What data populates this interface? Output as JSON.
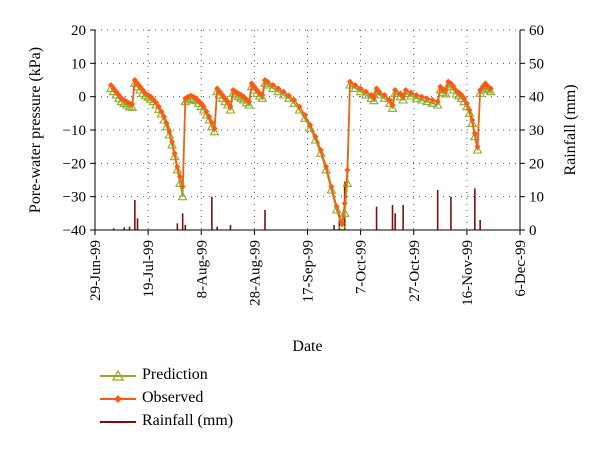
{
  "chart_data": {
    "type": "line",
    "xlabel": "Date",
    "ylabel": "Pore-water pressure (kPa)",
    "y2label": "Rainfall (mm)",
    "x_ticks": [
      "29-Jun-99",
      "19-Jul-99",
      "8-Aug-99",
      "28-Aug-99",
      "17-Sep-99",
      "7-Oct-99",
      "27-Oct-99",
      "16-Nov-99",
      "6-Dec-99"
    ],
    "xlim": [
      "1999-06-29",
      "1999-12-06"
    ],
    "ylim": [
      -40,
      20
    ],
    "y_ticks": [
      -40,
      -30,
      -20,
      -10,
      0,
      10,
      20
    ],
    "y2lim": [
      0,
      60
    ],
    "y2_ticks": [
      0,
      10,
      20,
      30,
      40,
      50,
      60
    ],
    "grid": "dotted",
    "colors": {
      "prediction": "#8faa2a",
      "observed": "#ff5a14",
      "rainfall": "#7a1010"
    },
    "series": [
      {
        "name": "Prediction",
        "axis": "left",
        "marker": "triangle",
        "points": [
          [
            "1999-07-05",
            2.5
          ],
          [
            "1999-07-06",
            1.5
          ],
          [
            "1999-07-07",
            0.5
          ],
          [
            "1999-07-08",
            -0.5
          ],
          [
            "1999-07-09",
            -1.5
          ],
          [
            "1999-07-10",
            -2
          ],
          [
            "1999-07-11",
            -2.5
          ],
          [
            "1999-07-12",
            -3
          ],
          [
            "1999-07-13",
            -3.2
          ],
          [
            "1999-07-14",
            4
          ],
          [
            "1999-07-15",
            3
          ],
          [
            "1999-07-16",
            2
          ],
          [
            "1999-07-17",
            1
          ],
          [
            "1999-07-18",
            0.3
          ],
          [
            "1999-07-19",
            -0.2
          ],
          [
            "1999-07-20",
            -0.8
          ],
          [
            "1999-07-21",
            -1.5
          ],
          [
            "1999-07-22",
            -2.5
          ],
          [
            "1999-07-23",
            -3.8
          ],
          [
            "1999-07-24",
            -5.2
          ],
          [
            "1999-07-25",
            -7
          ],
          [
            "1999-07-26",
            -9
          ],
          [
            "1999-07-27",
            -11.5
          ],
          [
            "1999-07-28",
            -14.5
          ],
          [
            "1999-07-29",
            -18
          ],
          [
            "1999-07-30",
            -22
          ],
          [
            "1999-07-31",
            -26
          ],
          [
            "1999-08-01",
            -30
          ],
          [
            "1999-08-02",
            -1.5
          ],
          [
            "1999-08-03",
            -1
          ],
          [
            "1999-08-04",
            -0.5
          ],
          [
            "1999-08-05",
            -0.8
          ],
          [
            "1999-08-06",
            -1.2
          ],
          [
            "1999-08-07",
            -2
          ],
          [
            "1999-08-08",
            -3
          ],
          [
            "1999-08-09",
            -4
          ],
          [
            "1999-08-10",
            -5.5
          ],
          [
            "1999-08-11",
            -7
          ],
          [
            "1999-08-12",
            -9
          ],
          [
            "1999-08-13",
            -10.5
          ],
          [
            "1999-08-14",
            1.5
          ],
          [
            "1999-08-15",
            0.5
          ],
          [
            "1999-08-16",
            -0.5
          ],
          [
            "1999-08-17",
            -1.5
          ],
          [
            "1999-08-18",
            -2.5
          ],
          [
            "1999-08-19",
            -4
          ],
          [
            "1999-08-20",
            1
          ],
          [
            "1999-08-21",
            0.5
          ],
          [
            "1999-08-22",
            0
          ],
          [
            "1999-08-23",
            -0.5
          ],
          [
            "1999-08-24",
            -1
          ],
          [
            "1999-08-25",
            -1.8
          ],
          [
            "1999-08-26",
            -2.5
          ],
          [
            "1999-08-27",
            3
          ],
          [
            "1999-08-28",
            2
          ],
          [
            "1999-08-29",
            1
          ],
          [
            "1999-08-30",
            0.2
          ],
          [
            "1999-08-31",
            -0.5
          ],
          [
            "1999-09-01",
            4
          ],
          [
            "1999-09-02",
            3.5
          ],
          [
            "1999-09-04",
            2.5
          ],
          [
            "1999-09-06",
            1.5
          ],
          [
            "1999-09-08",
            0.5
          ],
          [
            "1999-09-10",
            -0.5
          ],
          [
            "1999-09-12",
            -2
          ],
          [
            "1999-09-14",
            -4
          ],
          [
            "1999-09-16",
            -6.5
          ],
          [
            "1999-09-18",
            -9.5
          ],
          [
            "1999-09-20",
            -13
          ],
          [
            "1999-09-22",
            -17
          ],
          [
            "1999-09-24",
            -22
          ],
          [
            "1999-09-26",
            -28
          ],
          [
            "1999-09-28",
            -34
          ],
          [
            "1999-09-30",
            -39
          ],
          [
            "1999-10-01",
            -35
          ],
          [
            "1999-10-02",
            -26
          ],
          [
            "1999-10-03",
            3.5
          ],
          [
            "1999-10-05",
            2.5
          ],
          [
            "1999-10-07",
            1.5
          ],
          [
            "1999-10-09",
            0.5
          ],
          [
            "1999-10-11",
            -0.5
          ],
          [
            "1999-10-12",
            -1.2
          ],
          [
            "1999-10-13",
            1.5
          ],
          [
            "1999-10-14",
            0.5
          ],
          [
            "1999-10-16",
            -0.5
          ],
          [
            "1999-10-18",
            -2
          ],
          [
            "1999-10-19",
            -3.5
          ],
          [
            "1999-10-20",
            1
          ],
          [
            "1999-10-22",
            0
          ],
          [
            "1999-10-23",
            -1
          ],
          [
            "1999-10-24",
            1
          ],
          [
            "1999-10-26",
            0.2
          ],
          [
            "1999-10-28",
            -0.5
          ],
          [
            "1999-10-30",
            -1
          ],
          [
            "1999-11-01",
            -1.5
          ],
          [
            "1999-11-03",
            -2
          ],
          [
            "1999-11-05",
            -2.5
          ],
          [
            "1999-11-06",
            2
          ],
          [
            "1999-11-07",
            1.2
          ],
          [
            "1999-11-08",
            0.8
          ],
          [
            "1999-11-09",
            3.5
          ],
          [
            "1999-11-10",
            3
          ],
          [
            "1999-11-11",
            2
          ],
          [
            "1999-11-12",
            0.8
          ],
          [
            "1999-11-13",
            0.2
          ],
          [
            "1999-11-14",
            -0.5
          ],
          [
            "1999-11-15",
            -1.5
          ],
          [
            "1999-11-16",
            -3
          ],
          [
            "1999-11-17",
            -5
          ],
          [
            "1999-11-18",
            -8
          ],
          [
            "1999-11-19",
            -12
          ],
          [
            "1999-11-20",
            -16
          ],
          [
            "1999-11-21",
            1
          ],
          [
            "1999-11-22",
            2
          ],
          [
            "1999-11-23",
            2.5
          ],
          [
            "1999-11-24",
            2
          ],
          [
            "1999-11-25",
            1.5
          ]
        ]
      },
      {
        "name": "Observed",
        "axis": "left",
        "marker": "diamond",
        "points": [
          [
            "1999-07-05",
            3.5
          ],
          [
            "1999-07-06",
            2.5
          ],
          [
            "1999-07-07",
            1.5
          ],
          [
            "1999-07-08",
            0.5
          ],
          [
            "1999-07-09",
            -0.5
          ],
          [
            "1999-07-10",
            -1
          ],
          [
            "1999-07-11",
            -1.5
          ],
          [
            "1999-07-12",
            -2
          ],
          [
            "1999-07-13",
            -2.2
          ],
          [
            "1999-07-14",
            5
          ],
          [
            "1999-07-15",
            4
          ],
          [
            "1999-07-16",
            3
          ],
          [
            "1999-07-17",
            2
          ],
          [
            "1999-07-18",
            1
          ],
          [
            "1999-07-19",
            0.5
          ],
          [
            "1999-07-20",
            0
          ],
          [
            "1999-07-21",
            -0.8
          ],
          [
            "1999-07-22",
            -1.8
          ],
          [
            "1999-07-23",
            -3
          ],
          [
            "1999-07-24",
            -4.5
          ],
          [
            "1999-07-25",
            -6
          ],
          [
            "1999-07-26",
            -8
          ],
          [
            "1999-07-27",
            -10.5
          ],
          [
            "1999-07-28",
            -13.5
          ],
          [
            "1999-07-29",
            -17
          ],
          [
            "1999-07-30",
            -21
          ],
          [
            "1999-07-31",
            -24
          ],
          [
            "1999-08-01",
            -27
          ],
          [
            "1999-08-02",
            -0.5
          ],
          [
            "1999-08-03",
            0
          ],
          [
            "1999-08-04",
            0.3
          ],
          [
            "1999-08-05",
            0
          ],
          [
            "1999-08-06",
            -0.5
          ],
          [
            "1999-08-07",
            -1.2
          ],
          [
            "1999-08-08",
            -2
          ],
          [
            "1999-08-09",
            -3
          ],
          [
            "1999-08-10",
            -4.5
          ],
          [
            "1999-08-11",
            -6
          ],
          [
            "1999-08-12",
            -7.8
          ],
          [
            "1999-08-13",
            -9.5
          ],
          [
            "1999-08-14",
            2.5
          ],
          [
            "1999-08-15",
            1.5
          ],
          [
            "1999-08-16",
            0.5
          ],
          [
            "1999-08-17",
            -0.5
          ],
          [
            "1999-08-18",
            -1.5
          ],
          [
            "1999-08-19",
            -3
          ],
          [
            "1999-08-20",
            2
          ],
          [
            "1999-08-21",
            1.5
          ],
          [
            "1999-08-22",
            1
          ],
          [
            "1999-08-23",
            0.5
          ],
          [
            "1999-08-24",
            0
          ],
          [
            "1999-08-25",
            -0.8
          ],
          [
            "1999-08-26",
            -1.5
          ],
          [
            "1999-08-27",
            4
          ],
          [
            "1999-08-28",
            3
          ],
          [
            "1999-08-29",
            2
          ],
          [
            "1999-08-30",
            1
          ],
          [
            "1999-08-31",
            0.5
          ],
          [
            "1999-09-01",
            5
          ],
          [
            "1999-09-02",
            4.5
          ],
          [
            "1999-09-04",
            3.5
          ],
          [
            "1999-09-06",
            2.5
          ],
          [
            "1999-09-08",
            1.5
          ],
          [
            "1999-09-10",
            0.3
          ],
          [
            "1999-09-12",
            -1
          ],
          [
            "1999-09-14",
            -3
          ],
          [
            "1999-09-16",
            -5.5
          ],
          [
            "1999-09-18",
            -8.5
          ],
          [
            "1999-09-20",
            -12
          ],
          [
            "1999-09-22",
            -16
          ],
          [
            "1999-09-24",
            -21
          ],
          [
            "1999-09-26",
            -27
          ],
          [
            "1999-09-28",
            -33
          ],
          [
            "1999-09-30",
            -38
          ],
          [
            "1999-10-01",
            -32
          ],
          [
            "1999-10-02",
            -22
          ],
          [
            "1999-10-03",
            4.5
          ],
          [
            "1999-10-05",
            3.5
          ],
          [
            "1999-10-07",
            2.5
          ],
          [
            "1999-10-09",
            1.5
          ],
          [
            "1999-10-11",
            0.5
          ],
          [
            "1999-10-12",
            -0.2
          ],
          [
            "1999-10-13",
            2.5
          ],
          [
            "1999-10-14",
            1.5
          ],
          [
            "1999-10-16",
            0.5
          ],
          [
            "1999-10-18",
            -1
          ],
          [
            "1999-10-19",
            -2.5
          ],
          [
            "1999-10-20",
            2
          ],
          [
            "1999-10-22",
            1
          ],
          [
            "1999-10-23",
            0
          ],
          [
            "1999-10-24",
            2
          ],
          [
            "1999-10-26",
            1.2
          ],
          [
            "1999-10-28",
            0.5
          ],
          [
            "1999-10-30",
            0
          ],
          [
            "1999-11-01",
            -0.5
          ],
          [
            "1999-11-03",
            -1
          ],
          [
            "1999-11-05",
            -1.5
          ],
          [
            "1999-11-06",
            3
          ],
          [
            "1999-11-07",
            2.2
          ],
          [
            "1999-11-08",
            1.8
          ],
          [
            "1999-11-09",
            4.5
          ],
          [
            "1999-11-10",
            4
          ],
          [
            "1999-11-11",
            3
          ],
          [
            "1999-11-12",
            1.8
          ],
          [
            "1999-11-13",
            1.2
          ],
          [
            "1999-11-14",
            0.5
          ],
          [
            "1999-11-15",
            -0.5
          ],
          [
            "1999-11-16",
            -2
          ],
          [
            "1999-11-17",
            -4
          ],
          [
            "1999-11-18",
            -7
          ],
          [
            "1999-11-19",
            -11
          ],
          [
            "1999-11-20",
            -15
          ],
          [
            "1999-11-21",
            2
          ],
          [
            "1999-11-22",
            3
          ],
          [
            "1999-11-23",
            4
          ],
          [
            "1999-11-24",
            3
          ],
          [
            "1999-11-25",
            2.5
          ]
        ]
      },
      {
        "name": "Rainfall (mm)",
        "axis": "right",
        "type": "spikes",
        "points": [
          [
            "1999-07-06",
            0.5
          ],
          [
            "1999-07-10",
            0.8
          ],
          [
            "1999-07-12",
            1
          ],
          [
            "1999-07-14",
            9
          ],
          [
            "1999-07-15",
            3.5
          ],
          [
            "1999-07-30",
            2
          ],
          [
            "1999-08-01",
            5
          ],
          [
            "1999-08-02",
            1.5
          ],
          [
            "1999-08-12",
            10
          ],
          [
            "1999-08-14",
            1
          ],
          [
            "1999-08-19",
            1.5
          ],
          [
            "1999-09-01",
            6
          ],
          [
            "1999-09-27",
            1.5
          ],
          [
            "1999-09-29",
            3
          ],
          [
            "1999-10-01",
            14.5
          ],
          [
            "1999-10-13",
            7
          ],
          [
            "1999-10-19",
            7.5
          ],
          [
            "1999-10-20",
            5
          ],
          [
            "1999-10-23",
            7.5
          ],
          [
            "1999-11-05",
            12
          ],
          [
            "1999-11-10",
            10
          ],
          [
            "1999-11-19",
            12.5
          ],
          [
            "1999-11-21",
            3
          ]
        ]
      }
    ]
  },
  "legend": {
    "items": [
      {
        "label": "Prediction"
      },
      {
        "label": "Observed"
      },
      {
        "label": "Rainfall (mm)"
      }
    ]
  }
}
